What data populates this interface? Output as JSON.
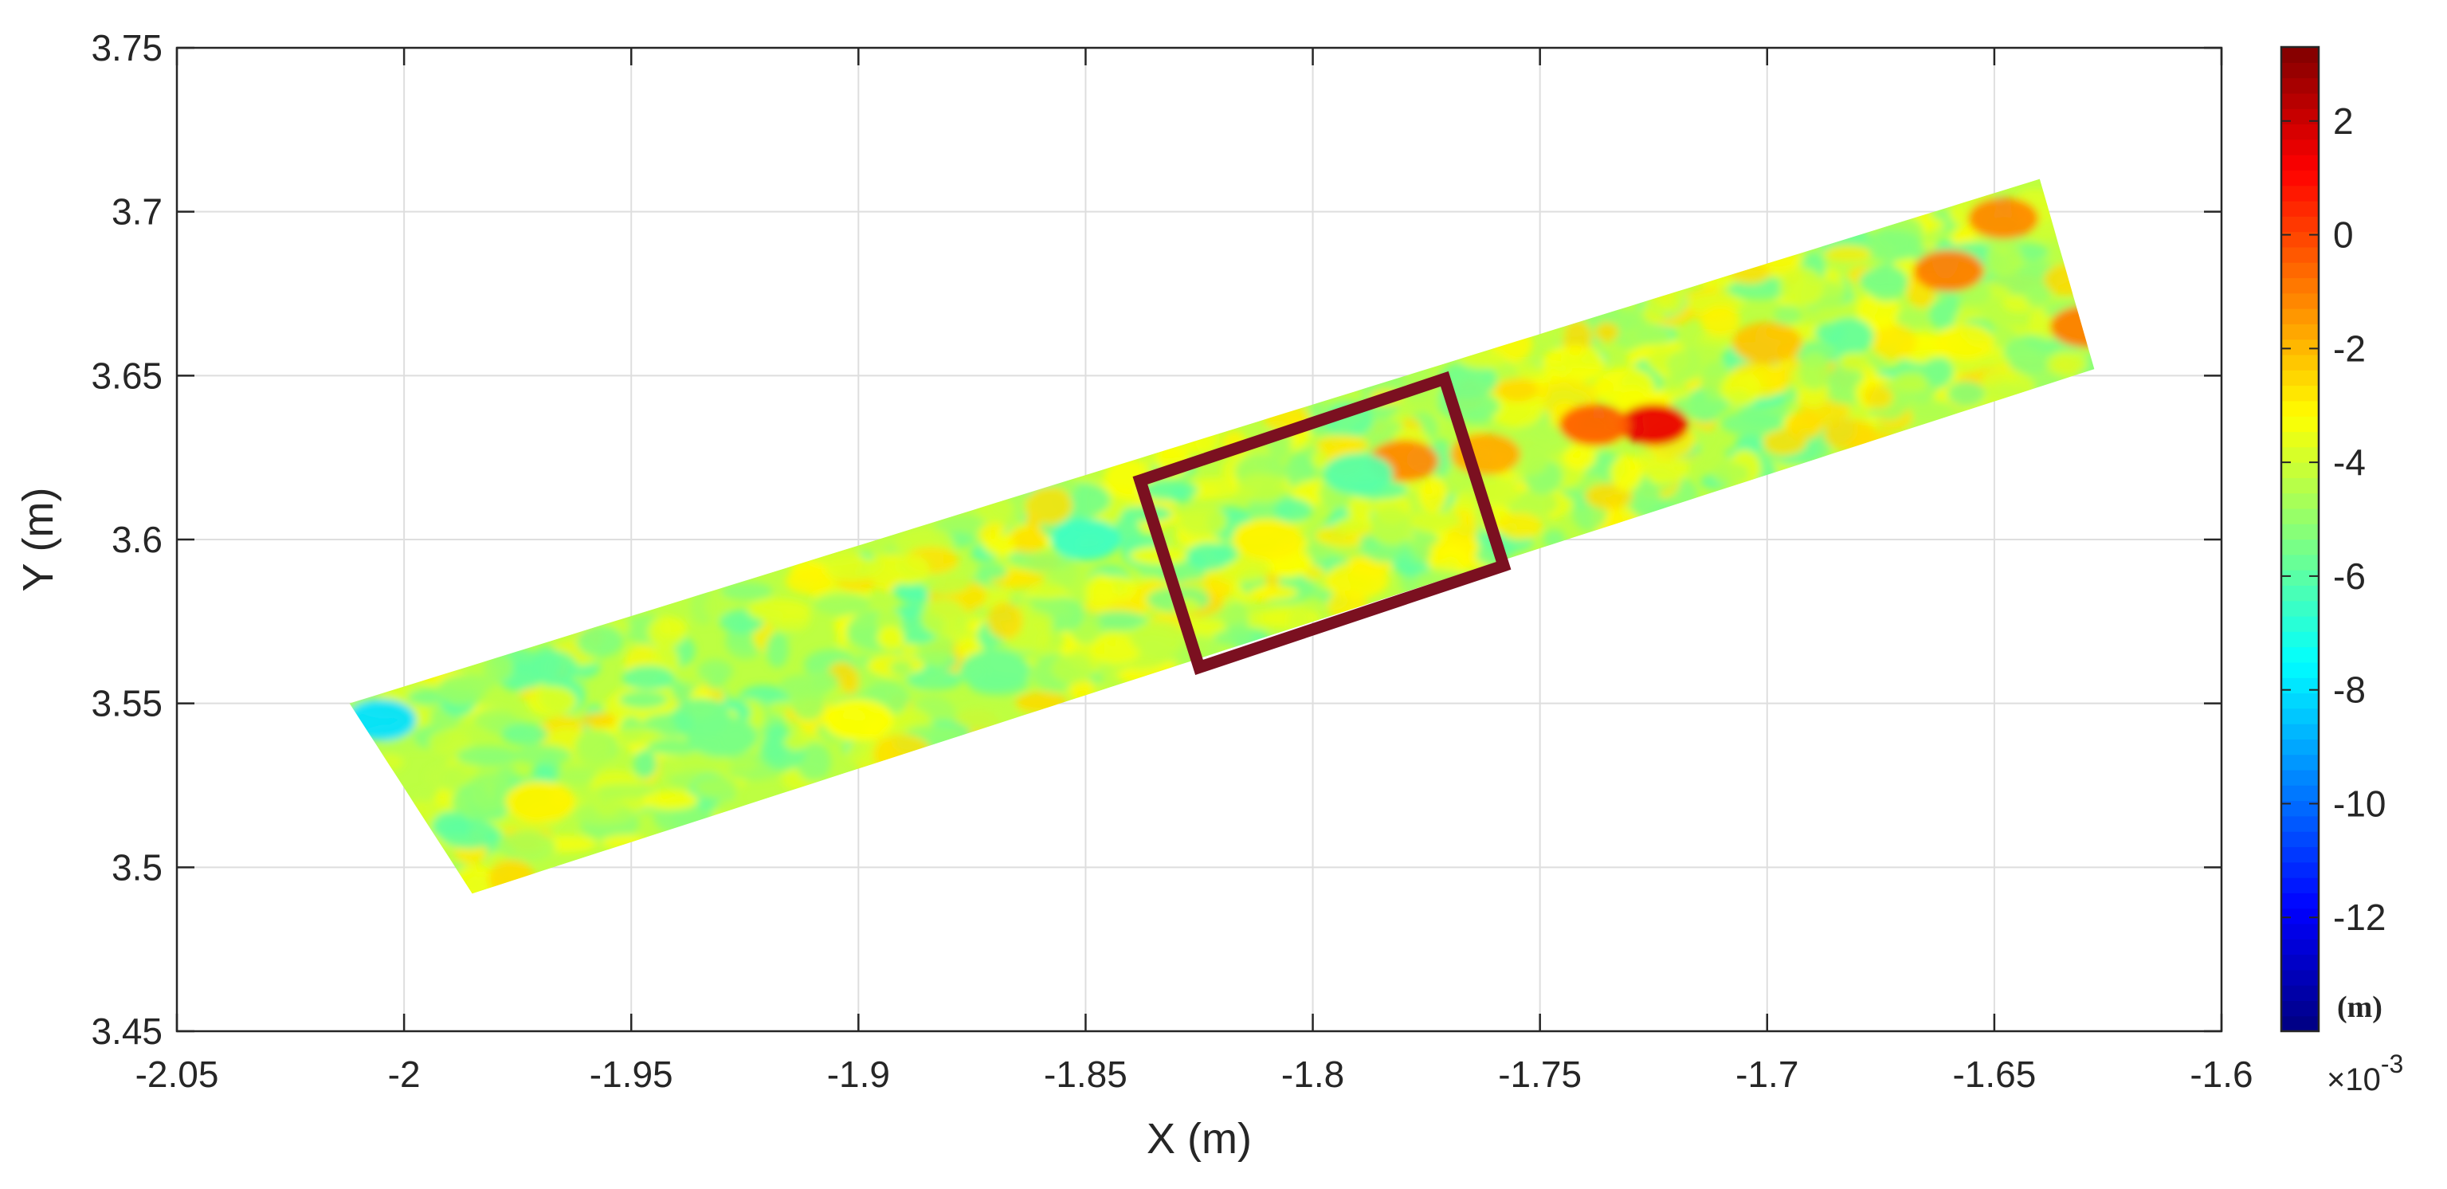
{
  "chart_data": {
    "type": "heatmap",
    "title": "",
    "xlabel": "X (m)",
    "ylabel": "Y (m)",
    "xlim": [
      -2.05,
      -1.6
    ],
    "ylim": [
      3.45,
      3.75
    ],
    "xticks": [
      -2.05,
      -2.0,
      -1.95,
      -1.9,
      -1.85,
      -1.8,
      -1.75,
      -1.7,
      -1.65,
      -1.6
    ],
    "xtick_labels": [
      "-2.05",
      "-2",
      "-1.95",
      "-1.9",
      "-1.85",
      "-1.8",
      "-1.75",
      "-1.7",
      "-1.65",
      "-1.6"
    ],
    "yticks": [
      3.45,
      3.5,
      3.55,
      3.6,
      3.65,
      3.7,
      3.75
    ],
    "ytick_labels": [
      "3.45",
      "3.5",
      "3.55",
      "3.6",
      "3.65",
      "3.7",
      "3.75"
    ],
    "grid": true,
    "colormap": "jet",
    "colorbar": {
      "clim": [
        -14,
        3.3
      ],
      "ticks": [
        -12,
        -10,
        -8,
        -6,
        -4,
        -2,
        0,
        2
      ],
      "tick_labels": [
        "-12",
        "-10",
        "-8",
        "-6",
        "-4",
        "-2",
        "0",
        "2"
      ],
      "unit_label": "(m)",
      "exponent_label": "×10",
      "exponent": "-3"
    },
    "strip": {
      "corners": [
        [
          -2.012,
          3.55
        ],
        [
          -1.64,
          3.71
        ],
        [
          -1.628,
          3.652
        ],
        [
          -1.985,
          3.492
        ]
      ],
      "base_value": -4.3
    },
    "hotspots": [
      {
        "x": -1.725,
        "y": 3.635,
        "value": 1.5
      },
      {
        "x": -1.738,
        "y": 3.635,
        "value": -0.5
      },
      {
        "x": -1.66,
        "y": 3.682,
        "value": -1.0
      },
      {
        "x": -1.648,
        "y": 3.698,
        "value": -1.2
      },
      {
        "x": -1.7,
        "y": 3.66,
        "value": -2.2
      },
      {
        "x": -1.78,
        "y": 3.624,
        "value": -1.2
      },
      {
        "x": -1.762,
        "y": 3.626,
        "value": -1.8
      },
      {
        "x": -1.81,
        "y": 3.6,
        "value": -3.0
      },
      {
        "x": -1.79,
        "y": 3.62,
        "value": -6.0
      },
      {
        "x": -1.85,
        "y": 3.6,
        "value": -6.5
      },
      {
        "x": -1.97,
        "y": 3.52,
        "value": -3.0
      },
      {
        "x": -1.93,
        "y": 3.54,
        "value": -5.5
      },
      {
        "x": -1.9,
        "y": 3.545,
        "value": -3.2
      },
      {
        "x": -1.87,
        "y": 3.56,
        "value": -5.6
      },
      {
        "x": -2.005,
        "y": 3.545,
        "value": -8.0
      },
      {
        "x": -1.63,
        "y": 3.665,
        "value": -1.0
      }
    ],
    "annotation_box": {
      "color": "#7b1020",
      "corners": [
        [
          -1.838,
          3.618
        ],
        [
          -1.771,
          3.649
        ],
        [
          -1.758,
          3.592
        ],
        [
          -1.825,
          3.561
        ]
      ]
    }
  }
}
